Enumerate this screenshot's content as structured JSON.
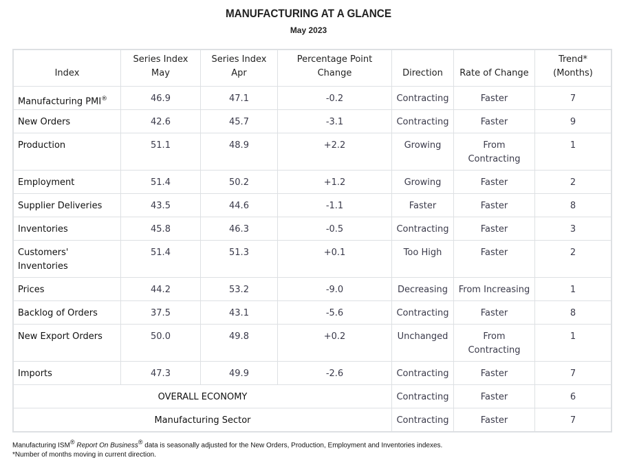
{
  "title": "MANUFACTURING AT A GLANCE",
  "subtitle": "May 2023",
  "headers": {
    "index": "Index",
    "may": [
      "Series Index",
      "May"
    ],
    "apr": [
      "Series Index",
      "Apr"
    ],
    "change": [
      "Percentage Point",
      "Change"
    ],
    "direction": "Direction",
    "rate": "Rate of Change",
    "trend": [
      "Trend*",
      "(Months)"
    ]
  },
  "rows": [
    {
      "name": "Manufacturing PMI",
      "sup": "®",
      "may": "46.9",
      "apr": "47.1",
      "change": "-0.2",
      "direction": "Contracting",
      "rate": "Faster",
      "trend": "7"
    },
    {
      "name": "New Orders",
      "may": "42.6",
      "apr": "45.7",
      "change": "-3.1",
      "direction": "Contracting",
      "rate": "Faster",
      "trend": "9"
    },
    {
      "name": "Production",
      "may": "51.1",
      "apr": "48.9",
      "change": "+2.2",
      "direction": "Growing",
      "rate": "From Contracting",
      "trend": "1"
    },
    {
      "name": "Employment",
      "may": "51.4",
      "apr": "50.2",
      "change": "+1.2",
      "direction": "Growing",
      "rate": "Faster",
      "trend": "2"
    },
    {
      "name": "Supplier Deliveries",
      "may": "43.5",
      "apr": "44.6",
      "change": "-1.1",
      "direction": "Faster",
      "rate": "Faster",
      "trend": "8"
    },
    {
      "name": "Inventories",
      "may": "45.8",
      "apr": "46.3",
      "change": "-0.5",
      "direction": "Contracting",
      "rate": "Faster",
      "trend": "3"
    },
    {
      "name": "Customers' Inventories",
      "may": "51.4",
      "apr": "51.3",
      "change": "+0.1",
      "direction": "Too High",
      "rate": "Faster",
      "trend": "2"
    },
    {
      "name": "Prices",
      "may": "44.2",
      "apr": "53.2",
      "change": "-9.0",
      "direction": "Decreasing",
      "rate": "From Increasing",
      "trend": "1"
    },
    {
      "name": "Backlog of Orders",
      "may": "37.5",
      "apr": "43.1",
      "change": "-5.6",
      "direction": "Contracting",
      "rate": "Faster",
      "trend": "8"
    },
    {
      "name": "New Export Orders",
      "may": "50.0",
      "apr": "49.8",
      "change": "+0.2",
      "direction": "Unchanged",
      "rate": "From Contracting",
      "trend": "1"
    },
    {
      "name": "Imports",
      "may": "47.3",
      "apr": "49.9",
      "change": "-2.6",
      "direction": "Contracting",
      "rate": "Faster",
      "trend": "7"
    }
  ],
  "summary": [
    {
      "name": "OVERALL ECONOMY",
      "direction": "Contracting",
      "rate": "Faster",
      "trend": "6"
    },
    {
      "name": "Manufacturing Sector",
      "direction": "Contracting",
      "rate": "Faster",
      "trend": "7"
    }
  ],
  "footnotes": {
    "line1_a": "Manufacturing ISM",
    "line1_b": "Report On Business",
    "line1_c": " data is seasonally adjusted for the New Orders, Production, Employment and Inventories indexes.",
    "reg": "®",
    "line2": "*Number of months moving in current direction."
  }
}
